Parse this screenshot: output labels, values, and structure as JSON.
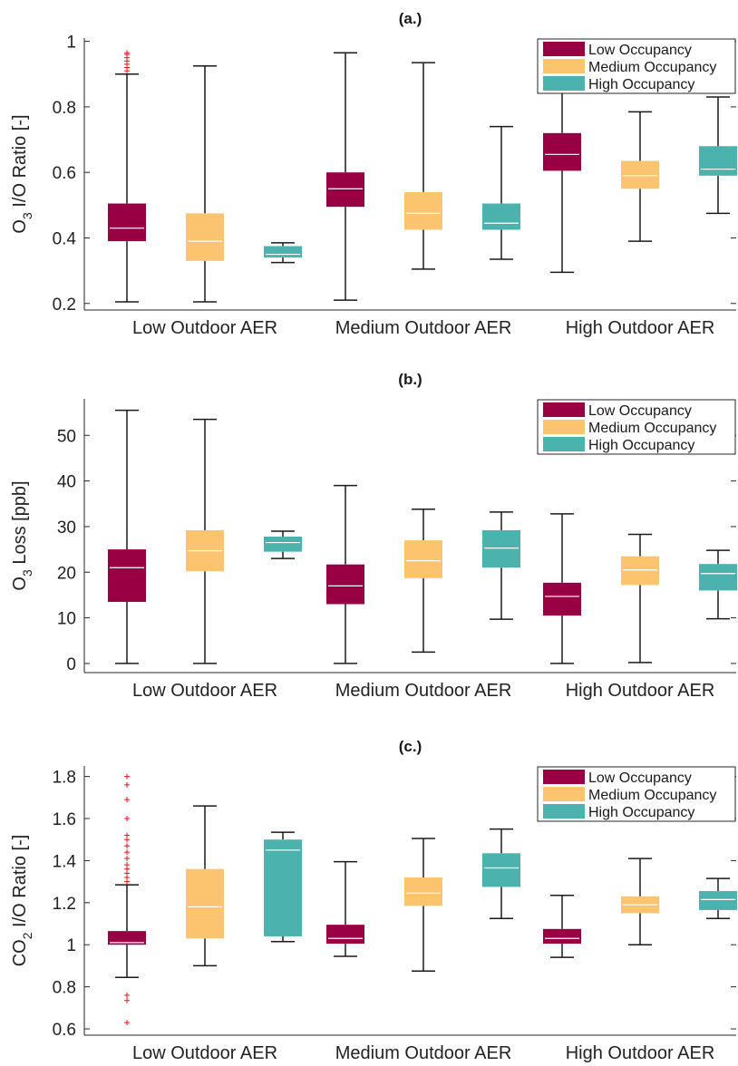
{
  "colors": {
    "low_occupancy": "#990044",
    "medium_occupancy": "#FDC470",
    "high_occupancy": "#4CB2AD",
    "median_line": "#ffffff",
    "whisker": "#1a1a1a",
    "outlier": "#ee1111"
  },
  "chart_data": [
    {
      "type": "box",
      "title": "(a.)",
      "ylabel": "O3 I/O Ratio [-]",
      "ylabel_main": "O",
      "ylabel_sub": "3",
      "ylabel_rest": " I/O Ratio [-]",
      "ylim": [
        0.18,
        1.01
      ],
      "yticks": [
        0.2,
        0.4,
        0.6,
        0.8,
        1
      ],
      "ytick_labels": [
        "0.2",
        "0.4",
        "0.6",
        "0.8",
        "1"
      ],
      "categories": [
        "Low Outdoor AER",
        "Medium Outdoor AER",
        "High Outdoor AER"
      ],
      "legend": {
        "position": "top-right",
        "entries": [
          "Low Occupancy",
          "Medium Occupancy",
          "High Occupancy"
        ]
      },
      "series": [
        {
          "name": "Low Occupancy",
          "boxes": [
            {
              "whisker_low": 0.205,
              "q1": 0.39,
              "median": 0.43,
              "q3": 0.505,
              "whisker_high": 0.9,
              "outliers": [
                0.91,
                0.92,
                0.93,
                0.94,
                0.95,
                0.96,
                0.965
              ]
            },
            {
              "whisker_low": 0.21,
              "q1": 0.495,
              "median": 0.55,
              "q3": 0.6,
              "whisker_high": 0.965,
              "outliers": []
            },
            {
              "whisker_low": 0.295,
              "q1": 0.605,
              "median": 0.655,
              "q3": 0.72,
              "whisker_high": 0.965,
              "outliers": []
            }
          ]
        },
        {
          "name": "Medium Occupancy",
          "boxes": [
            {
              "whisker_low": 0.205,
              "q1": 0.33,
              "median": 0.39,
              "q3": 0.475,
              "whisker_high": 0.925,
              "outliers": []
            },
            {
              "whisker_low": 0.305,
              "q1": 0.425,
              "median": 0.475,
              "q3": 0.54,
              "whisker_high": 0.935,
              "outliers": []
            },
            {
              "whisker_low": 0.39,
              "q1": 0.55,
              "median": 0.59,
              "q3": 0.635,
              "whisker_high": 0.785,
              "outliers": []
            }
          ]
        },
        {
          "name": "High Occupancy",
          "boxes": [
            {
              "whisker_low": 0.325,
              "q1": 0.34,
              "median": 0.35,
              "q3": 0.375,
              "whisker_high": 0.385,
              "outliers": []
            },
            {
              "whisker_low": 0.335,
              "q1": 0.425,
              "median": 0.445,
              "q3": 0.505,
              "whisker_high": 0.74,
              "outliers": []
            },
            {
              "whisker_low": 0.475,
              "q1": 0.59,
              "median": 0.61,
              "q3": 0.68,
              "whisker_high": 0.83,
              "outliers": []
            }
          ]
        }
      ]
    },
    {
      "type": "box",
      "title": "(b.)",
      "ylabel": "O3 Loss [ppb]",
      "ylabel_main": "O",
      "ylabel_sub": "3",
      "ylabel_rest": " Loss [ppb]",
      "ylim": [
        -2,
        58
      ],
      "yticks": [
        0,
        10,
        20,
        30,
        40,
        50
      ],
      "ytick_labels": [
        "0",
        "10",
        "20",
        "30",
        "40",
        "50"
      ],
      "categories": [
        "Low Outdoor AER",
        "Medium Outdoor AER",
        "High Outdoor AER"
      ],
      "legend": {
        "position": "top-right",
        "entries": [
          "Low Occupancy",
          "Medium Occupancy",
          "High Occupancy"
        ]
      },
      "series": [
        {
          "name": "Low Occupancy",
          "boxes": [
            {
              "whisker_low": 0,
              "q1": 13.5,
              "median": 21,
              "q3": 25,
              "whisker_high": 55.5,
              "outliers": []
            },
            {
              "whisker_low": 0,
              "q1": 13,
              "median": 17,
              "q3": 21.7,
              "whisker_high": 39,
              "outliers": []
            },
            {
              "whisker_low": 0,
              "q1": 10.5,
              "median": 14.7,
              "q3": 17.7,
              "whisker_high": 32.8,
              "outliers": []
            }
          ]
        },
        {
          "name": "Medium Occupancy",
          "boxes": [
            {
              "whisker_low": 0,
              "q1": 20.2,
              "median": 24.7,
              "q3": 29.2,
              "whisker_high": 53.5,
              "outliers": []
            },
            {
              "whisker_low": 2.5,
              "q1": 18.7,
              "median": 22.5,
              "q3": 27,
              "whisker_high": 33.8,
              "outliers": []
            },
            {
              "whisker_low": 0.2,
              "q1": 17.2,
              "median": 20.5,
              "q3": 23.5,
              "whisker_high": 28.3,
              "outliers": []
            }
          ]
        },
        {
          "name": "High Occupancy",
          "boxes": [
            {
              "whisker_low": 23,
              "q1": 24.5,
              "median": 26.5,
              "q3": 27.8,
              "whisker_high": 29,
              "outliers": []
            },
            {
              "whisker_low": 9.7,
              "q1": 21,
              "median": 25.3,
              "q3": 29.2,
              "whisker_high": 33.2,
              "outliers": []
            },
            {
              "whisker_low": 9.8,
              "q1": 16,
              "median": 19.7,
              "q3": 21.8,
              "whisker_high": 24.8,
              "outliers": []
            }
          ]
        }
      ]
    },
    {
      "type": "box",
      "title": "(c.)",
      "ylabel": "CO2 I/O Ratio [-]",
      "ylabel_main": "CO",
      "ylabel_sub": "2",
      "ylabel_rest": " I/O Ratio [-]",
      "ylim": [
        0.57,
        1.85
      ],
      "yticks": [
        0.6,
        0.8,
        1,
        1.2,
        1.4,
        1.6,
        1.8
      ],
      "ytick_labels": [
        "0.6",
        "0.8",
        "1",
        "1.2",
        "1.4",
        "1.6",
        "1.8"
      ],
      "categories": [
        "Low Outdoor AER",
        "Medium Outdoor AER",
        "High Outdoor AER"
      ],
      "legend": {
        "position": "top-right",
        "entries": [
          "Low Occupancy",
          "Medium Occupancy",
          "High Occupancy"
        ]
      },
      "series": [
        {
          "name": "Low Occupancy",
          "boxes": [
            {
              "whisker_low": 0.845,
              "q1": 1.0,
              "median": 1.01,
              "q3": 1.065,
              "whisker_high": 1.285,
              "outliers": [
                0.63,
                0.735,
                0.76,
                1.3,
                1.32,
                1.34,
                1.36,
                1.38,
                1.41,
                1.44,
                1.47,
                1.5,
                1.52,
                1.6,
                1.69,
                1.76,
                1.8
              ]
            },
            {
              "whisker_low": 0.945,
              "q1": 1.005,
              "median": 1.03,
              "q3": 1.095,
              "whisker_high": 1.395,
              "outliers": []
            },
            {
              "whisker_low": 0.94,
              "q1": 1.005,
              "median": 1.03,
              "q3": 1.075,
              "whisker_high": 1.235,
              "outliers": [
                1.655
              ]
            }
          ]
        },
        {
          "name": "Medium Occupancy",
          "boxes": [
            {
              "whisker_low": 0.9,
              "q1": 1.03,
              "median": 1.18,
              "q3": 1.36,
              "whisker_high": 1.66,
              "outliers": []
            },
            {
              "whisker_low": 0.875,
              "q1": 1.185,
              "median": 1.245,
              "q3": 1.32,
              "whisker_high": 1.505,
              "outliers": []
            },
            {
              "whisker_low": 1.0,
              "q1": 1.15,
              "median": 1.19,
              "q3": 1.23,
              "whisker_high": 1.41,
              "outliers": []
            }
          ]
        },
        {
          "name": "High Occupancy",
          "boxes": [
            {
              "whisker_low": 1.015,
              "q1": 1.04,
              "median": 1.45,
              "q3": 1.5,
              "whisker_high": 1.535,
              "outliers": []
            },
            {
              "whisker_low": 1.125,
              "q1": 1.275,
              "median": 1.365,
              "q3": 1.435,
              "whisker_high": 1.55,
              "outliers": []
            },
            {
              "whisker_low": 1.125,
              "q1": 1.165,
              "median": 1.215,
              "q3": 1.255,
              "whisker_high": 1.315,
              "outliers": []
            }
          ]
        }
      ]
    }
  ]
}
